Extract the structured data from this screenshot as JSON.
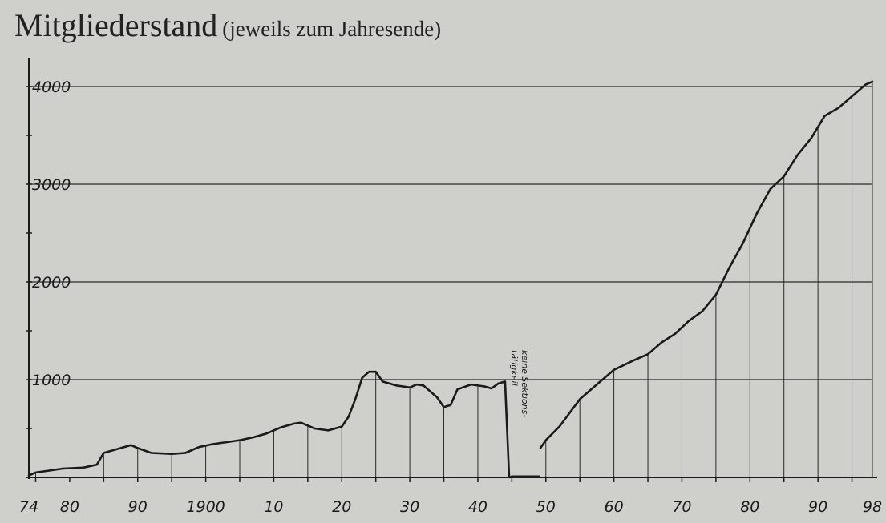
{
  "title": "Mitgliederstand",
  "subtitle": "(jeweils zum Jahresende)",
  "annotation": [
    "keine Sektions-",
    "tätigkeit"
  ],
  "colors": {
    "background": "#cfd0cc",
    "ink": "#1a1a1a",
    "grid": "#2a2a2a"
  },
  "chart_data": {
    "type": "line",
    "title": "Mitgliederstand",
    "subtitle": "(jeweils zum Jahresende)",
    "xlabel": "",
    "ylabel": "",
    "xlim": [
      1874,
      1998
    ],
    "ylim": [
      0,
      4100
    ],
    "grid": "horizontal at 1000-step y ticks, vertical drop lines every 5 years",
    "y_ticks": [
      1000,
      2000,
      3000,
      4000
    ],
    "y_tick_labels": [
      "1000",
      "2000",
      "3000",
      "4000"
    ],
    "x_ticks": [
      1874,
      1880,
      1890,
      1900,
      1910,
      1920,
      1930,
      1940,
      1950,
      1960,
      1970,
      1980,
      1990,
      1998
    ],
    "x_tick_labels": [
      "74",
      "80",
      "90",
      "1900",
      "10",
      "20",
      "30",
      "40",
      "50",
      "60",
      "70",
      "80",
      "90",
      "98"
    ],
    "drop_lines_x": [
      1875,
      1885,
      1890,
      1895,
      1900,
      1905,
      1910,
      1915,
      1920,
      1925,
      1930,
      1935,
      1940,
      1945,
      1950,
      1955,
      1960,
      1965,
      1970,
      1975,
      1980,
      1985,
      1990,
      1995,
      1998
    ],
    "series": [
      {
        "segments": [
          [
            [
              1874,
              20
            ],
            [
              1875,
              50
            ],
            [
              1877,
              70
            ],
            [
              1879,
              90
            ],
            [
              1882,
              100
            ],
            [
              1884,
              130
            ],
            [
              1885,
              250
            ],
            [
              1887,
              290
            ],
            [
              1889,
              330
            ],
            [
              1890,
              300
            ],
            [
              1892,
              250
            ],
            [
              1895,
              240
            ],
            [
              1897,
              250
            ],
            [
              1899,
              310
            ],
            [
              1901,
              340
            ],
            [
              1903,
              360
            ],
            [
              1905,
              380
            ],
            [
              1907,
              410
            ],
            [
              1909,
              450
            ],
            [
              1911,
              510
            ],
            [
              1913,
              550
            ],
            [
              1914,
              560
            ],
            [
              1916,
              500
            ],
            [
              1918,
              480
            ],
            [
              1920,
              520
            ],
            [
              1921,
              620
            ],
            [
              1922,
              800
            ],
            [
              1923,
              1020
            ],
            [
              1924,
              1080
            ],
            [
              1925,
              1080
            ],
            [
              1926,
              980
            ],
            [
              1928,
              940
            ],
            [
              1930,
              920
            ],
            [
              1931,
              950
            ],
            [
              1932,
              940
            ],
            [
              1934,
              820
            ],
            [
              1935,
              720
            ],
            [
              1936,
              740
            ],
            [
              1937,
              900
            ],
            [
              1939,
              950
            ],
            [
              1941,
              930
            ],
            [
              1942,
              910
            ],
            [
              1943,
              960
            ],
            [
              1944,
              980
            ],
            [
              1944.6,
              0
            ],
            [
              1945,
              10
            ],
            [
              1949,
              10
            ]
          ],
          [
            [
              1949.2,
              300
            ],
            [
              1950,
              380
            ],
            [
              1952,
              520
            ],
            [
              1955,
              800
            ],
            [
              1958,
              980
            ],
            [
              1960,
              1100
            ],
            [
              1963,
              1200
            ],
            [
              1965,
              1260
            ],
            [
              1967,
              1380
            ],
            [
              1969,
              1470
            ],
            [
              1971,
              1600
            ],
            [
              1973,
              1700
            ],
            [
              1975,
              1870
            ],
            [
              1977,
              2150
            ],
            [
              1979,
              2400
            ],
            [
              1981,
              2700
            ],
            [
              1983,
              2950
            ],
            [
              1985,
              3080
            ],
            [
              1987,
              3300
            ],
            [
              1989,
              3470
            ],
            [
              1991,
              3700
            ],
            [
              1993,
              3780
            ],
            [
              1995,
              3900
            ],
            [
              1997,
              4020
            ],
            [
              1998,
              4050
            ]
          ]
        ]
      }
    ]
  }
}
